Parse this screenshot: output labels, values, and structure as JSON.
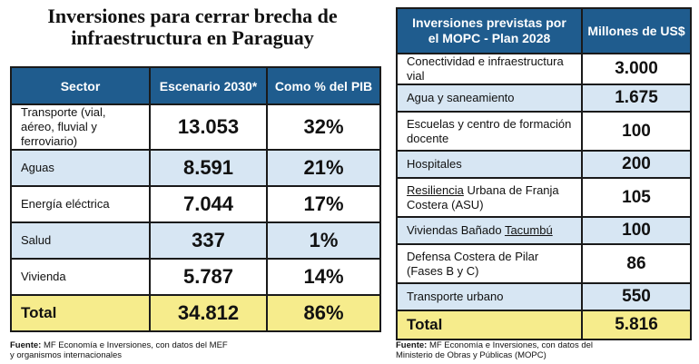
{
  "title": {
    "line1": "Inversiones para cerrar brecha de",
    "line2": "infraestructura en Paraguay"
  },
  "left_table": {
    "headers": [
      "Sector",
      "Escenario 2030*",
      "Como % del PIB"
    ],
    "rows": [
      {
        "sector": "Transporte (vial, aéreo, fluvial y ferroviario)",
        "escenario": "13.053",
        "pib": "32%"
      },
      {
        "sector": "Aguas",
        "escenario": "8.591",
        "pib": "21%"
      },
      {
        "sector": "Energía eléctrica",
        "escenario": "7.044",
        "pib": "17%"
      },
      {
        "sector": "Salud",
        "escenario": "337",
        "pib": "1%"
      },
      {
        "sector": "Vivienda",
        "escenario": "5.787",
        "pib": "14%"
      }
    ],
    "total": {
      "label": "Total",
      "escenario": "34.812",
      "pib": "86%"
    }
  },
  "right_table": {
    "header_left_line1": "Inversiones previstas por",
    "header_left_line2": "el MOPC - Plan 2028",
    "header_right": "Millones de US$",
    "rows": [
      {
        "label": "Conectividad e infraestructura vial",
        "value": "3.000"
      },
      {
        "label": "Agua y saneamiento",
        "value": "1.675"
      },
      {
        "label": "Escuelas y centro de formación docente",
        "value": "100"
      },
      {
        "label": "Hospitales",
        "value": "200"
      },
      {
        "label_underlined": "Resiliencia",
        "label_rest": " Urbana de Franja Costera (ASU)",
        "value": "105"
      },
      {
        "label_plain": "Viviendas Bañado ",
        "label_underlined": "Tacumbú",
        "value": "100"
      },
      {
        "label": "Defensa Costera de Pilar (Fases B y C)",
        "value": "86"
      },
      {
        "label": "Transporte urbano",
        "value": "550"
      }
    ],
    "total": {
      "label": "Total",
      "value": "5.816"
    }
  },
  "sources": {
    "left_prefix": "Fuente:",
    "left_text": " MF Economía e Inversiones, con datos del MEF",
    "left_line2": "y organismos internacionales",
    "right_prefix": "Fuente:",
    "right_text": " MF Economía e Inversiones, con datos del",
    "right_line2": "Ministerio de Obras y Públicas (MOPC)"
  }
}
